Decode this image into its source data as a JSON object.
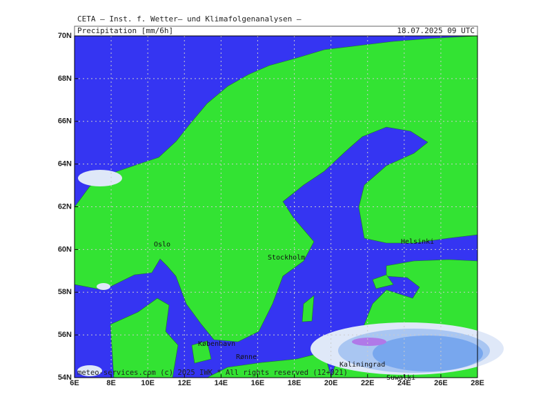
{
  "header": {
    "title": "CETA — Inst. f. Wetter— und Klimafolgenanalysen —"
  },
  "map": {
    "title": "Precipitation [mm/6h]",
    "timestamp": "18.07.2025 09 UTC",
    "xticks": [
      {
        "value": 6,
        "label": "6E"
      },
      {
        "value": 8,
        "label": "8E"
      },
      {
        "value": 10,
        "label": "10E"
      },
      {
        "value": 12,
        "label": "12E"
      },
      {
        "value": 14,
        "label": "14E"
      },
      {
        "value": 16,
        "label": "16E"
      },
      {
        "value": 18,
        "label": "18E"
      },
      {
        "value": 20,
        "label": "20E"
      },
      {
        "value": 22,
        "label": "22E"
      },
      {
        "value": 24,
        "label": "24E"
      },
      {
        "value": 26,
        "label": "26E"
      },
      {
        "value": 28,
        "label": "28E"
      }
    ],
    "yticks": [
      {
        "value": 54,
        "label": "54N"
      },
      {
        "value": 56,
        "label": "56N"
      },
      {
        "value": 58,
        "label": "58N"
      },
      {
        "value": 60,
        "label": "60N"
      },
      {
        "value": 62,
        "label": "62N"
      },
      {
        "value": 64,
        "label": "64N"
      },
      {
        "value": 66,
        "label": "66N"
      },
      {
        "value": 68,
        "label": "68N"
      },
      {
        "value": 70,
        "label": "70N"
      }
    ],
    "cities": [
      "Oslo",
      "Stockholm",
      "Helsinki",
      "København",
      "Rønne",
      "Kaliningrad",
      "Suwalki"
    ],
    "footer": "meteo-services.com (c) 2025 IWK * All rights reserved (12+021)"
  }
}
